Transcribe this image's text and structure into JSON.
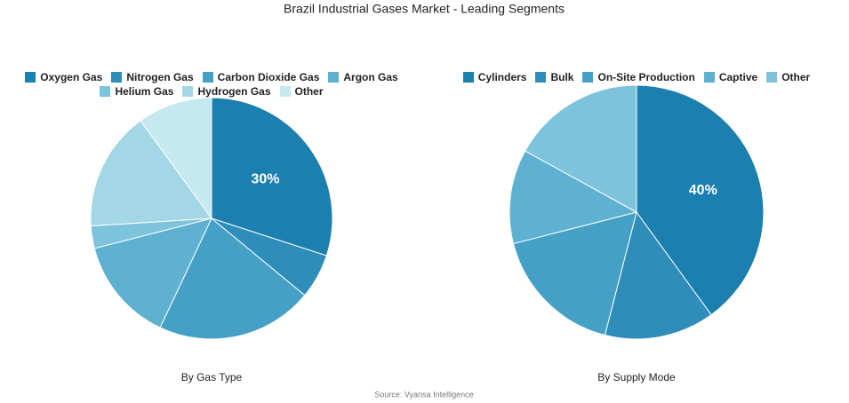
{
  "title": "Brazil Industrial Gases Market - Leading Segments",
  "source": "Source: Vyansa Intelligence",
  "chart_data": [
    {
      "type": "pie",
      "title": "By Gas Type",
      "categories": [
        "Oxygen Gas",
        "Nitrogen Gas",
        "Carbon Dioxide Gas",
        "Argon Gas",
        "Helium Gas",
        "Hydrogen Gas",
        "Other"
      ],
      "values": [
        30,
        6,
        21,
        14,
        3,
        16,
        10
      ],
      "value_labels": [
        "30%",
        null,
        null,
        null,
        null,
        null,
        null
      ],
      "colors": [
        "#1b7fb0",
        "#2e8db9",
        "#45a0c6",
        "#5fb1d1",
        "#7dc3dc",
        "#a3d7e6",
        "#c6e8f0"
      ]
    },
    {
      "type": "pie",
      "title": "By Supply Mode",
      "categories": [
        "Cylinders",
        "Bulk",
        "On-Site Production",
        "Captive",
        "Other"
      ],
      "values": [
        40,
        14,
        17,
        12,
        17
      ],
      "value_labels": [
        "40%",
        null,
        null,
        null,
        null
      ],
      "colors": [
        "#1b7fb0",
        "#2e8db9",
        "#45a0c6",
        "#5fb1d1",
        "#7dc3dc"
      ]
    }
  ]
}
